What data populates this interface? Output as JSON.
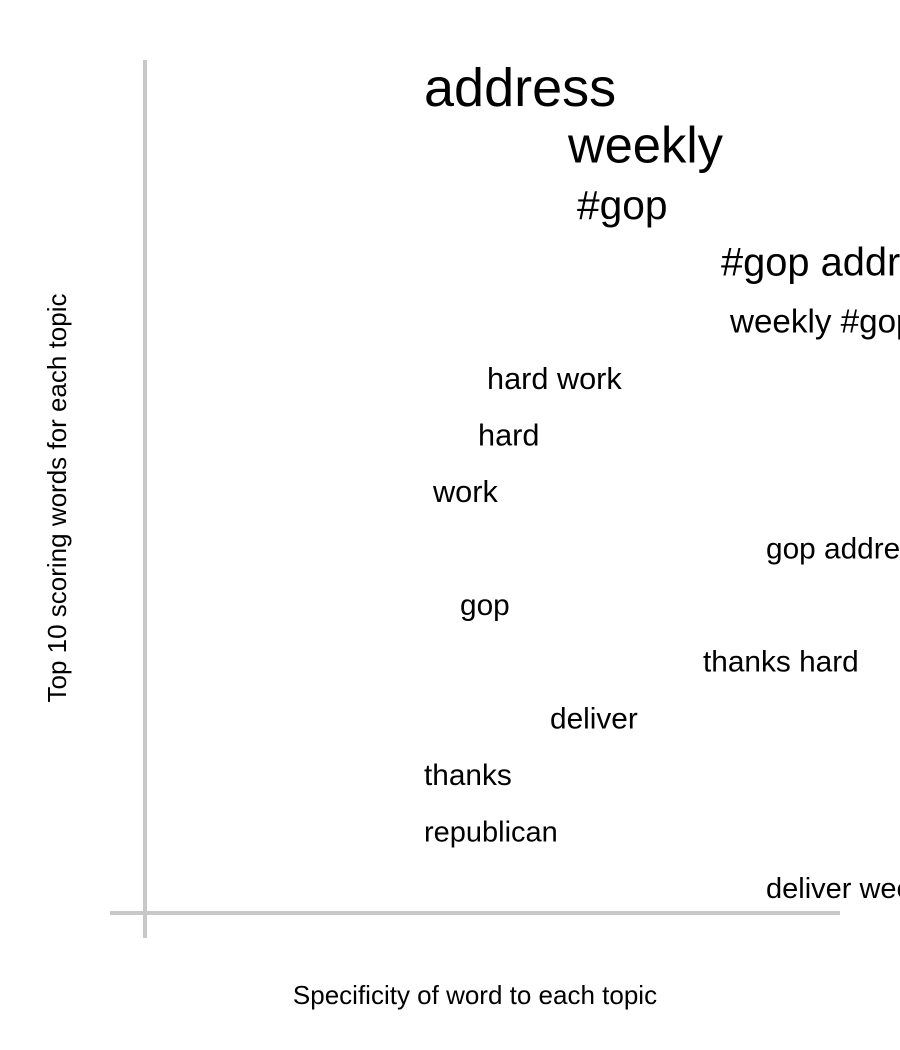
{
  "chart_data": {
    "type": "scatter",
    "xlabel": "Specificity of word to each topic",
    "ylabel": "Top 10 scoring words for each topic",
    "points": [
      {
        "word": "address",
        "specificity": 0.31,
        "score": 1.0
      },
      {
        "word": "weekly",
        "specificity": 0.47,
        "score": 0.96
      },
      {
        "word": "#gop",
        "specificity": 0.48,
        "score": 0.84
      },
      {
        "word": "#gop address",
        "specificity": 0.64,
        "score": 0.83
      },
      {
        "word": "weekly #gop",
        "specificity": 0.65,
        "score": 0.75
      },
      {
        "word": "hard work",
        "specificity": 0.38,
        "score": 0.72
      },
      {
        "word": "hard",
        "specificity": 0.37,
        "score": 0.72
      },
      {
        "word": "work",
        "specificity": 0.32,
        "score": 0.72
      },
      {
        "word": "gop address",
        "specificity": 0.69,
        "score": 0.71
      },
      {
        "word": "gop",
        "specificity": 0.35,
        "score": 0.71
      },
      {
        "word": "thanks hard",
        "specificity": 0.62,
        "score": 0.71
      },
      {
        "word": "deliver",
        "specificity": 0.45,
        "score": 0.71
      },
      {
        "word": "thanks",
        "specificity": 0.31,
        "score": 0.71
      },
      {
        "word": "republican",
        "specificity": 0.31,
        "score": 0.7
      },
      {
        "word": "deliver weekly",
        "specificity": 0.69,
        "score": 0.7
      }
    ]
  }
}
